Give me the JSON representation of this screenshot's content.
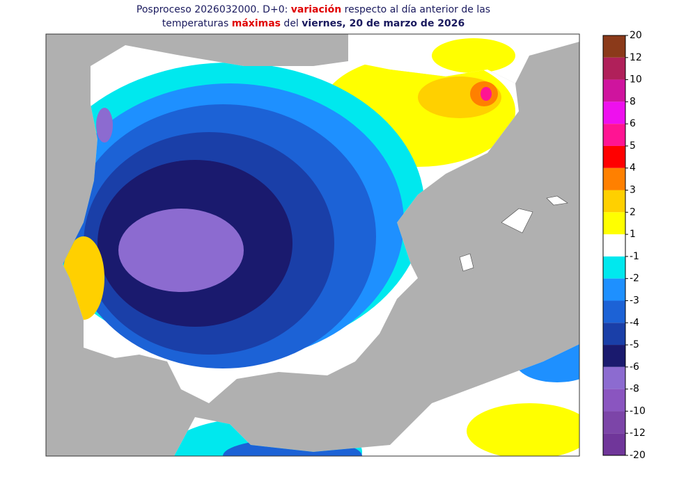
{
  "title": {
    "line1": {
      "part1": "Posproceso 2026032000. D+0: ",
      "highlight": "variación",
      "part2": " respecto al día anterior de las"
    },
    "line2": {
      "part1": "temperaturas ",
      "highlight": "máximas",
      "part2": " del ",
      "date": "viernes, 20 de marzo de 2026"
    }
  },
  "colorbar": {
    "labels": [
      20,
      12,
      10,
      8,
      6,
      5,
      4,
      3,
      2,
      1,
      -1,
      -2,
      -3,
      -4,
      -5,
      -6,
      -8,
      -10,
      -12,
      -20
    ],
    "colors": [
      "#8b3a1a",
      "#b0205a",
      "#cf149e",
      "#ee10ee",
      "#ff1493",
      "#ff0000",
      "#ff8000",
      "#ffd000",
      "#ffff00",
      "#ffffff",
      "#00e8ee",
      "#1e90ff",
      "#1c62d6",
      "#1a3fa8",
      "#1a1a6e",
      "#8c6bd0",
      "#8a55c0",
      "#7c45a8",
      "#70369a"
    ]
  }
}
